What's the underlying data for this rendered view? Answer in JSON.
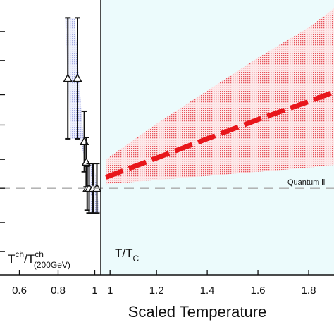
{
  "chart_data": [
    {
      "type": "scatter",
      "panel": "left",
      "panel_label": {
        "main": "T",
        "sup1": "ch",
        "slash": "/T",
        "sup2": "ch",
        "sub2": "(200GeV)"
      },
      "x_ticks": [
        "0.6",
        "0.8",
        "1"
      ],
      "xlim": [
        0.5,
        1.02
      ],
      "ylim": [
        0.0,
        1.0
      ],
      "band_color": "#9aa0e0",
      "points": [
        {
          "x": 0.85,
          "y": 0.715,
          "yerr": 0.22
        },
        {
          "x": 0.9,
          "y": 0.715,
          "yerr": 0.22
        },
        {
          "x": 0.935,
          "y": 0.485,
          "yerr": 0.11
        },
        {
          "x": 0.945,
          "y": 0.41,
          "yerr": 0.09
        },
        {
          "x": 0.95,
          "y": 0.315,
          "yerr": 0.08
        },
        {
          "x": 0.96,
          "y": 0.315,
          "yerr": 0.09
        },
        {
          "x": 0.98,
          "y": 0.315,
          "yerr": 0.09
        },
        {
          "x": 1.0,
          "y": 0.315,
          "yerr": 0.09
        }
      ]
    },
    {
      "type": "line",
      "panel": "right",
      "panel_label": {
        "main": "T/T",
        "sub": "C"
      },
      "x_ticks": [
        "1",
        "1.2",
        "1.4",
        "1.6",
        "1.8"
      ],
      "xlim": [
        0.98,
        1.9
      ],
      "ylim": [
        0.0,
        1.0
      ],
      "background": "#ecfbfc",
      "line_color": "#e8161b",
      "band_color": "#f07a80",
      "series": [
        {
          "x": [
            1.0,
            1.2,
            1.4,
            1.6,
            1.8,
            1.9
          ],
          "y": [
            0.355,
            0.425,
            0.495,
            0.565,
            0.63,
            0.665
          ],
          "upper": [
            0.42,
            0.55,
            0.67,
            0.79,
            0.9,
            0.97
          ],
          "lower": [
            0.33,
            0.345,
            0.36,
            0.375,
            0.39,
            0.4
          ]
        }
      ]
    }
  ],
  "quantum_limit": {
    "label": "Quantum li",
    "y": 0.315,
    "color": "#aaaaaa"
  },
  "xlabel": "Scaled Temperature",
  "y_tick_positions": [
    0.085,
    0.19,
    0.315,
    0.42,
    0.545,
    0.655,
    0.78,
    0.885
  ]
}
